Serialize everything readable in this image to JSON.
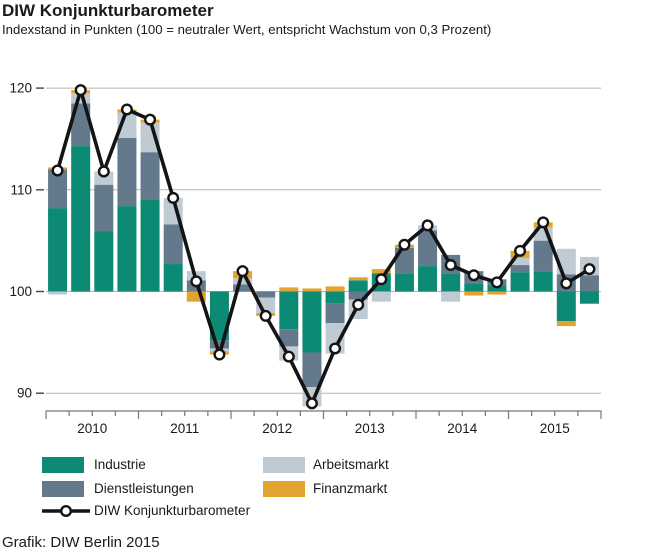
{
  "page": {
    "title": "DIW Konjunkturbarometer",
    "subtitle": "Indexstand in Punkten (100 = neutraler Wert, entspricht Wachstum von 0,3 Prozent)",
    "footer": "Grafik: DIW Berlin 2015"
  },
  "legend": {
    "industrie": "Industrie",
    "dienstleistungen": "Dienstleistungen",
    "arbeitsmarkt": "Arbeitsmarkt",
    "finanzmarkt": "Finanzmarkt",
    "barometer": "DIW Konjunkturbarometer"
  },
  "chart_data": {
    "type": "bar",
    "stacked": true,
    "overlay_line": "DIW Konjunkturbarometer",
    "title": "DIW Konjunkturbarometer",
    "subtitle": "Indexstand in Punkten (100 = neutraler Wert, entspricht Wachstum von 0,3 Prozent)",
    "baseline": 100,
    "ylim": [
      88,
      121.5
    ],
    "yticks": [
      90,
      100,
      110,
      120
    ],
    "grid": true,
    "legend_position": "bottom-left",
    "years": [
      "2010",
      "2011",
      "2012",
      "2013",
      "2014",
      "2015"
    ],
    "series_order": [
      "industrie",
      "dienstleistungen",
      "arbeitsmarkt",
      "finanzmarkt"
    ],
    "colors": {
      "industrie": "#0d8a74",
      "dienstleistungen": "#65798d",
      "arbeitsmarkt": "#bfcad3",
      "finanzmarkt": "#e2a42f",
      "line": "#141414",
      "marker_fill": "#ffffff",
      "gridline": "#b3b3b3",
      "axis": "#777777",
      "text": "#1a1a1a"
    },
    "quarters": [
      {
        "label": "2010 Q1",
        "industrie": 8.2,
        "dienstleistungen": 3.8,
        "arbeitsmarkt": -0.3,
        "finanzmarkt": 0.2,
        "barometer": 111.9
      },
      {
        "label": "2010 Q2",
        "industrie": 14.3,
        "dienstleistungen": 4.2,
        "arbeitsmarkt": 1.0,
        "finanzmarkt": 0.3,
        "barometer": 119.8
      },
      {
        "label": "2010 Q3",
        "industrie": 5.9,
        "dienstleistungen": 4.6,
        "arbeitsmarkt": 1.3,
        "finanzmarkt": 0.0,
        "barometer": 111.8
      },
      {
        "label": "2010 Q4",
        "industrie": 8.4,
        "dienstleistungen": 6.7,
        "arbeitsmarkt": 2.5,
        "finanzmarkt": 0.3,
        "barometer": 117.9
      },
      {
        "label": "2011 Q1",
        "industrie": 9.0,
        "dienstleistungen": 4.7,
        "arbeitsmarkt": 2.9,
        "finanzmarkt": 0.3,
        "barometer": 116.9
      },
      {
        "label": "2011 Q2",
        "industrie": 2.7,
        "dienstleistungen": 3.9,
        "arbeitsmarkt": 2.6,
        "finanzmarkt": 0.0,
        "barometer": 109.2
      },
      {
        "label": "2011 Q3",
        "industrie": 0.0,
        "dienstleistungen": 1.1,
        "arbeitsmarkt": 0.9,
        "finanzmarkt": -1.0,
        "barometer": 101.0
      },
      {
        "label": "2011 Q4",
        "industrie": -4.8,
        "dienstleistungen": -0.8,
        "arbeitsmarkt": -0.3,
        "finanzmarkt": -0.3,
        "barometer": 93.8
      },
      {
        "label": "2012 Q1",
        "industrie": 0.0,
        "dienstleistungen": 0.7,
        "arbeitsmarkt": 0.6,
        "finanzmarkt": 0.7,
        "barometer": 102.0
      },
      {
        "label": "2012 Q2",
        "industrie": 0.0,
        "dienstleistungen": -0.6,
        "arbeitsmarkt": -1.5,
        "finanzmarkt": -0.3,
        "barometer": 97.6
      },
      {
        "label": "2012 Q3",
        "industrie": -3.7,
        "dienstleistungen": -1.7,
        "arbeitsmarkt": -1.4,
        "finanzmarkt": 0.4,
        "barometer": 93.6
      },
      {
        "label": "2012 Q4",
        "industrie": -6.0,
        "dienstleistungen": -3.4,
        "arbeitsmarkt": -1.9,
        "finanzmarkt": 0.3,
        "barometer": 89.0
      },
      {
        "label": "2013 Q1",
        "industrie": -1.2,
        "dienstleistungen": -1.9,
        "arbeitsmarkt": -3.0,
        "finanzmarkt": 0.5,
        "barometer": 94.4
      },
      {
        "label": "2013 Q2",
        "industrie": 1.1,
        "dienstleistungen": -0.8,
        "arbeitsmarkt": -1.9,
        "finanzmarkt": 0.3,
        "barometer": 98.7
      },
      {
        "label": "2013 Q3",
        "industrie": 1.8,
        "dienstleistungen": 0.0,
        "arbeitsmarkt": -1.0,
        "finanzmarkt": 0.4,
        "barometer": 101.2
      },
      {
        "label": "2013 Q4",
        "industrie": 1.8,
        "dienstleistungen": 2.5,
        "arbeitsmarkt": 0.0,
        "finanzmarkt": 0.3,
        "barometer": 104.6
      },
      {
        "label": "2014 Q1",
        "industrie": 2.5,
        "dienstleistungen": 3.5,
        "arbeitsmarkt": 0.5,
        "finanzmarkt": 0.0,
        "barometer": 106.5
      },
      {
        "label": "2014 Q2",
        "industrie": 1.8,
        "dienstleistungen": 1.8,
        "arbeitsmarkt": -1.0,
        "finanzmarkt": 0.0,
        "barometer": 102.6
      },
      {
        "label": "2014 Q3",
        "industrie": 0.8,
        "dienstleistungen": 1.2,
        "arbeitsmarkt": 0.0,
        "finanzmarkt": -0.4,
        "barometer": 101.6
      },
      {
        "label": "2014 Q4",
        "industrie": 0.6,
        "dienstleistungen": 0.6,
        "arbeitsmarkt": 0.0,
        "finanzmarkt": -0.3,
        "barometer": 100.9
      },
      {
        "label": "2015 Q1",
        "industrie": 1.9,
        "dienstleistungen": 0.7,
        "arbeitsmarkt": 0.7,
        "finanzmarkt": 0.7,
        "barometer": 104.0
      },
      {
        "label": "2015 Q2",
        "industrie": 2.0,
        "dienstleistungen": 3.0,
        "arbeitsmarkt": 1.3,
        "finanzmarkt": 0.5,
        "barometer": 106.8
      },
      {
        "label": "2015 Q3",
        "industrie": -2.9,
        "dienstleistungen": 1.7,
        "arbeitsmarkt": 2.5,
        "finanzmarkt": -0.5,
        "barometer": 100.8
      },
      {
        "label": "2015 Q4",
        "industrie": -1.2,
        "dienstleistungen": 1.6,
        "arbeitsmarkt": 1.8,
        "finanzmarkt": 0.0,
        "barometer": 102.2
      }
    ]
  }
}
